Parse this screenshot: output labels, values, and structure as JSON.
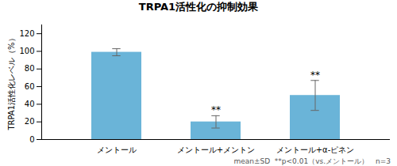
{
  "chart_data": {
    "type": "bar",
    "title": "TRPA1活性化の抑制効果",
    "ylabel": "TRPA1活性化レベル（%）",
    "categories": [
      "メントール",
      "メントール+メントン",
      "メントール+α-ピネン"
    ],
    "values": [
      99,
      20,
      50
    ],
    "errors": [
      4,
      7,
      17
    ],
    "color": "#6ab4d8",
    "error_color": "#666666",
    "ylim": [
      0,
      130
    ],
    "yticks": [
      0,
      20,
      40,
      60,
      80,
      100,
      120
    ],
    "annotations": [
      {
        "category": "メントール+メントン",
        "text": "**"
      },
      {
        "category": "メントール+α-ピネン",
        "text": "**"
      }
    ],
    "footnote": "mean±SD  **p<0.01（vs.メントール）　n=3",
    "grid": false
  }
}
